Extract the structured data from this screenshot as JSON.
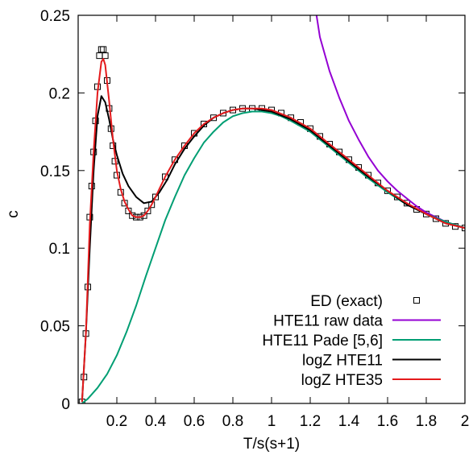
{
  "chart_data": {
    "type": "line",
    "xlabel": "T/s(s+1)",
    "ylabel": "c",
    "xlim": [
      0,
      2
    ],
    "ylim": [
      0,
      0.25
    ],
    "x_ticks": [
      {
        "value": 0.2,
        "label": "0.2"
      },
      {
        "value": 0.4,
        "label": "0.4"
      },
      {
        "value": 0.6,
        "label": "0.6"
      },
      {
        "value": 0.8,
        "label": "0.8"
      },
      {
        "value": 1.0,
        "label": "1"
      },
      {
        "value": 1.2,
        "label": "1.2"
      },
      {
        "value": 1.4,
        "label": "1.4"
      },
      {
        "value": 1.6,
        "label": "1.6"
      },
      {
        "value": 1.8,
        "label": "1.8"
      },
      {
        "value": 2.0,
        "label": "2"
      }
    ],
    "y_ticks": [
      {
        "value": 0,
        "label": "0"
      },
      {
        "value": 0.05,
        "label": "0.05"
      },
      {
        "value": 0.1,
        "label": "0.1"
      },
      {
        "value": 0.15,
        "label": "0.15"
      },
      {
        "value": 0.2,
        "label": "0.2"
      },
      {
        "value": 0.25,
        "label": "0.25"
      }
    ],
    "grid": false,
    "legend_position": "bottom-right",
    "series": [
      {
        "name": "ED (exact)",
        "style": "markers",
        "marker": "square",
        "color": "#000000",
        "x": [
          0.02,
          0.03,
          0.04,
          0.05,
          0.06,
          0.07,
          0.08,
          0.09,
          0.1,
          0.11,
          0.12,
          0.13,
          0.14,
          0.15,
          0.16,
          0.17,
          0.18,
          0.19,
          0.2,
          0.22,
          0.24,
          0.26,
          0.28,
          0.3,
          0.32,
          0.34,
          0.36,
          0.38,
          0.4,
          0.45,
          0.5,
          0.55,
          0.6,
          0.65,
          0.7,
          0.75,
          0.8,
          0.85,
          0.9,
          0.95,
          1.0,
          1.05,
          1.1,
          1.15,
          1.2,
          1.25,
          1.3,
          1.35,
          1.4,
          1.45,
          1.5,
          1.55,
          1.6,
          1.65,
          1.7,
          1.75,
          1.8,
          1.85,
          1.9,
          1.95,
          2.0
        ],
        "y": [
          0.001,
          0.017,
          0.045,
          0.075,
          0.12,
          0.14,
          0.162,
          0.182,
          0.204,
          0.224,
          0.228,
          0.228,
          0.224,
          0.208,
          0.19,
          0.177,
          0.166,
          0.156,
          0.147,
          0.136,
          0.129,
          0.124,
          0.121,
          0.12,
          0.12,
          0.121,
          0.124,
          0.128,
          0.133,
          0.146,
          0.157,
          0.166,
          0.174,
          0.18,
          0.184,
          0.187,
          0.189,
          0.19,
          0.19,
          0.19,
          0.189,
          0.187,
          0.184,
          0.181,
          0.177,
          0.172,
          0.167,
          0.162,
          0.157,
          0.152,
          0.147,
          0.142,
          0.137,
          0.133,
          0.129,
          0.125,
          0.122,
          0.119,
          0.116,
          0.114,
          0.113
        ]
      },
      {
        "name": "HTE11 raw data",
        "style": "line",
        "color": "#9400d3",
        "x": [
          1.23,
          1.25,
          1.3,
          1.35,
          1.4,
          1.45,
          1.5,
          1.55,
          1.6,
          1.65,
          1.7,
          1.75,
          1.8,
          1.85,
          1.9,
          1.95,
          2.0
        ],
        "y": [
          0.252,
          0.236,
          0.214,
          0.197,
          0.182,
          0.17,
          0.159,
          0.15,
          0.143,
          0.137,
          0.132,
          0.127,
          0.123,
          0.12,
          0.117,
          0.115,
          0.113
        ]
      },
      {
        "name": "HTE11 Pade [5,6]",
        "style": "line",
        "color": "#009e73",
        "x": [
          0.02,
          0.05,
          0.1,
          0.15,
          0.2,
          0.25,
          0.3,
          0.35,
          0.4,
          0.45,
          0.5,
          0.55,
          0.6,
          0.65,
          0.7,
          0.75,
          0.8,
          0.85,
          0.9,
          0.95,
          1.0,
          1.05,
          1.1,
          1.2,
          1.3,
          1.4,
          1.5,
          1.6,
          1.7,
          1.8,
          1.9,
          2.0
        ],
        "y": [
          0.0,
          0.003,
          0.01,
          0.019,
          0.031,
          0.046,
          0.063,
          0.082,
          0.1,
          0.118,
          0.133,
          0.147,
          0.158,
          0.168,
          0.175,
          0.181,
          0.185,
          0.187,
          0.188,
          0.188,
          0.187,
          0.185,
          0.182,
          0.175,
          0.165,
          0.155,
          0.145,
          0.136,
          0.128,
          0.122,
          0.117,
          0.113
        ]
      },
      {
        "name": "logZ HTE11",
        "style": "line",
        "color": "#000000",
        "x": [
          0.02,
          0.04,
          0.06,
          0.08,
          0.1,
          0.12,
          0.14,
          0.16,
          0.18,
          0.2,
          0.23,
          0.26,
          0.3,
          0.34,
          0.38,
          0.42,
          0.46,
          0.5,
          0.55,
          0.6,
          0.65,
          0.7,
          0.75,
          0.8,
          0.85,
          0.9,
          0.95,
          1.0,
          1.1,
          1.2,
          1.3,
          1.4,
          1.5,
          1.6,
          1.7,
          1.8,
          1.9,
          2.0
        ],
        "y": [
          0.001,
          0.045,
          0.1,
          0.15,
          0.185,
          0.198,
          0.194,
          0.183,
          0.17,
          0.16,
          0.148,
          0.14,
          0.133,
          0.129,
          0.13,
          0.136,
          0.144,
          0.154,
          0.164,
          0.172,
          0.179,
          0.184,
          0.187,
          0.189,
          0.19,
          0.19,
          0.189,
          0.188,
          0.183,
          0.176,
          0.166,
          0.156,
          0.146,
          0.137,
          0.128,
          0.122,
          0.116,
          0.113
        ]
      },
      {
        "name": "logZ HTE35",
        "style": "line",
        "color": "#e41a1c",
        "x": [
          0.02,
          0.04,
          0.06,
          0.08,
          0.1,
          0.12,
          0.13,
          0.14,
          0.16,
          0.18,
          0.2,
          0.22,
          0.24,
          0.26,
          0.28,
          0.3,
          0.32,
          0.34,
          0.36,
          0.38,
          0.4,
          0.45,
          0.5,
          0.55,
          0.6,
          0.65,
          0.7,
          0.75,
          0.8,
          0.85,
          0.9,
          0.95,
          1.0,
          1.1,
          1.2,
          1.3,
          1.4,
          1.5,
          1.6,
          1.7,
          1.8,
          1.9,
          2.0
        ],
        "y": [
          0.001,
          0.045,
          0.115,
          0.162,
          0.2,
          0.22,
          0.222,
          0.218,
          0.195,
          0.17,
          0.15,
          0.138,
          0.13,
          0.125,
          0.121,
          0.12,
          0.12,
          0.121,
          0.124,
          0.128,
          0.133,
          0.146,
          0.157,
          0.166,
          0.174,
          0.18,
          0.184,
          0.187,
          0.189,
          0.19,
          0.19,
          0.19,
          0.189,
          0.184,
          0.177,
          0.167,
          0.157,
          0.147,
          0.137,
          0.129,
          0.122,
          0.116,
          0.113
        ]
      }
    ]
  }
}
